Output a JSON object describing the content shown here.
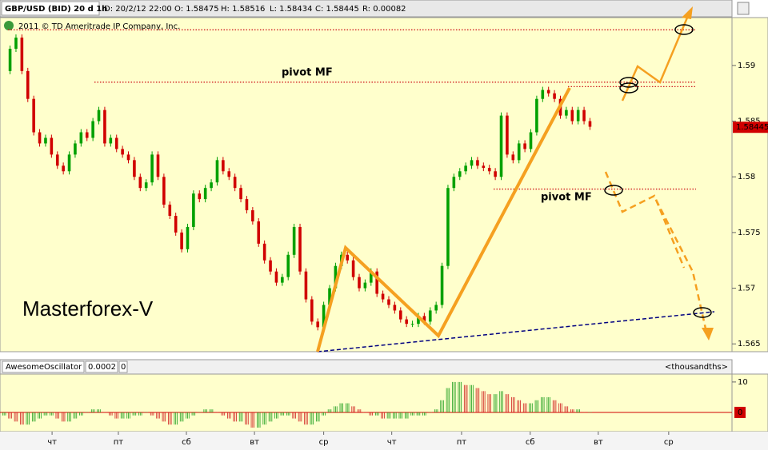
{
  "header": {
    "symbol": "GBP/USD (BID) 20 d 1h",
    "date": "D: 20/2/12 22:00",
    "open": "O: 1.58475",
    "high": "H: 1.58516",
    "low": "L: 1.58434",
    "close": "C: 1.58445",
    "range": "R: 0.00082"
  },
  "chart_data": {
    "type": "candlestick",
    "watermark": "2011 © TD Ameritrade IP Company, Inc.",
    "annotations": [
      "pivot MF",
      "pivot MF",
      "Masterforex-V"
    ],
    "last_price_label": "1.58445",
    "last_price": 1.58445,
    "up_color": "#00a000",
    "down_color": "#d00000",
    "xlim": [
      -0.7,
      123
    ],
    "xticks": [
      {
        "value": 8.1,
        "label": "чт"
      },
      {
        "value": 19.3,
        "label": "пт"
      },
      {
        "value": 30.8,
        "label": "сб"
      },
      {
        "value": 42.3,
        "label": "вт"
      },
      {
        "value": 54,
        "label": "ср"
      },
      {
        "value": 65.5,
        "label": "чт"
      },
      {
        "value": 77.3,
        "label": "пт"
      },
      {
        "value": 88.9,
        "label": "сб"
      },
      {
        "value": 100.4,
        "label": "вт"
      },
      {
        "value": 112.3,
        "label": "ср"
      }
    ],
    "ylim": [
      1.5643,
      1.5943
    ],
    "yticks": [
      1.565,
      1.57,
      1.575,
      1.58,
      1.585,
      1.59
    ],
    "levels": [
      {
        "value": 1.5932
      },
      {
        "value": 1.5885
      },
      {
        "value": 1.5881
      },
      {
        "value": 1.5789
      }
    ],
    "values": [
      1.5895,
      1.5915,
      1.5925,
      1.5895,
      1.587,
      1.584,
      1.583,
      1.5835,
      1.582,
      1.581,
      1.5805,
      1.582,
      1.583,
      1.584,
      1.5835,
      1.585,
      1.586,
      1.583,
      1.5835,
      1.5825,
      1.582,
      1.5815,
      1.58,
      1.579,
      1.5795,
      1.582,
      1.58,
      1.5775,
      1.5765,
      1.575,
      1.5735,
      1.5755,
      1.5785,
      1.578,
      1.579,
      1.5795,
      1.5815,
      1.5805,
      1.58,
      1.579,
      1.578,
      1.577,
      1.576,
      1.574,
      1.5725,
      1.5715,
      1.5705,
      1.571,
      1.573,
      1.5755,
      1.5715,
      1.569,
      1.567,
      1.5665,
      1.5685,
      1.57,
      1.572,
      1.573,
      1.5725,
      1.571,
      1.57,
      1.5705,
      1.5715,
      1.5695,
      1.569,
      1.5685,
      1.568,
      1.5672,
      1.5668,
      1.5668,
      1.5675,
      1.567,
      1.568,
      1.5685,
      1.572,
      1.579,
      1.58,
      1.5805,
      1.581,
      1.5815,
      1.581,
      1.5808,
      1.5805,
      1.58,
      1.5855,
      1.582,
      1.5815,
      1.583,
      1.5825,
      1.584,
      1.587,
      1.5878,
      1.5875,
      1.587,
      1.5855,
      1.586,
      1.585,
      1.586,
      1.585,
      1.5845
    ],
    "oscillator": {
      "name": "AwesomeOscillator",
      "param": "0.0002",
      "param2": "0",
      "units": "<thousandths>",
      "zero_label": "0",
      "ylim": [
        -5,
        12.6
      ],
      "yticks": [
        10
      ],
      "values": [
        -1,
        -2,
        -3,
        -4,
        -4,
        -3,
        -2,
        -1,
        -1,
        -2,
        -3,
        -3,
        -2,
        -1,
        0,
        1,
        1,
        0,
        -1,
        -2,
        -2,
        -2,
        -1,
        -1,
        0,
        -1,
        -2,
        -3,
        -4,
        -4,
        -3,
        -2,
        -1,
        0,
        1,
        1,
        0,
        -1,
        -2,
        -3,
        -3,
        -4,
        -5,
        -5,
        -4,
        -3,
        -2,
        -1,
        -1,
        -2,
        -3,
        -4,
        -4,
        -3,
        -1,
        1,
        2,
        3,
        3,
        2,
        1,
        0,
        -1,
        -1,
        -2,
        -2,
        -2,
        -2,
        -2,
        -1,
        -1,
        -1,
        0,
        1,
        4,
        8,
        10,
        10,
        9,
        9,
        8,
        7,
        6,
        6,
        7,
        6,
        5,
        4,
        3,
        3,
        4,
        5,
        5,
        4,
        3,
        2,
        1,
        1,
        0,
        0
      ]
    }
  }
}
